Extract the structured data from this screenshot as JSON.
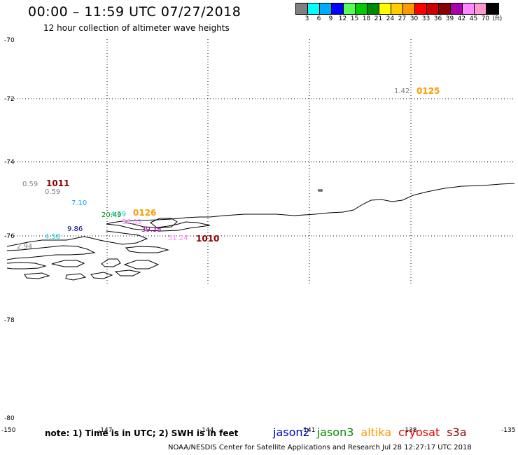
{
  "header": {
    "title": "00:00 – 11:59 UTC 07/27/2018",
    "subtitle": "12 hour collection of altimeter wave heights"
  },
  "colorbar": {
    "colors": [
      "#808080",
      "#00ffff",
      "#00aaff",
      "#0000ff",
      "#55ff55",
      "#00cc00",
      "#008800",
      "#ffff00",
      "#ffcc00",
      "#ff9900",
      "#ff0000",
      "#cc0000",
      "#880000",
      "#aa00aa",
      "#ff88ff",
      "#ff99cc",
      "#000000"
    ],
    "labels": [
      "3",
      "6",
      "9",
      "12",
      "15",
      "18",
      "21",
      "24",
      "27",
      "30",
      "33",
      "36",
      "39",
      "42",
      "45",
      "70"
    ],
    "unit": "(ft)"
  },
  "map": {
    "lat_labels": [
      "-70",
      "-72",
      "-74",
      "-76",
      "-78",
      "-78",
      "-80"
    ],
    "lon_labels": [
      "-150",
      "-147",
      "-144",
      "-141",
      "-138",
      "-135"
    ],
    "observations": [
      {
        "text": "1.42",
        "color": "#808080"
      },
      {
        "text": "0.59",
        "color": "#808080"
      },
      {
        "text": "0.59",
        "color": "#808080"
      },
      {
        "text": "7.10",
        "color": "#00aaff"
      },
      {
        "text": "20.49",
        "color": "#008800"
      },
      {
        "text": "4.59",
        "color": "#00cccc"
      },
      {
        "text": "56.03",
        "color": "#ff88ff"
      },
      {
        "text": "39.38",
        "color": "#aa00aa"
      },
      {
        "text": "9.86",
        "color": "#000088"
      },
      {
        "text": "4.58",
        "color": "#00cccc"
      },
      {
        "text": "51.24",
        "color": "#ff88ff"
      },
      {
        "text": "2.94",
        "color": "#808080"
      }
    ],
    "passes": [
      {
        "text": "0125",
        "color": "#ff9900"
      },
      {
        "text": "1011",
        "color": "#880000"
      },
      {
        "text": "0126",
        "color": "#ff9900"
      },
      {
        "text": "1010",
        "color": "#880000"
      }
    ]
  },
  "note": "note:  1) Time is in UTC; 2) SWH is in feet",
  "legend": [
    {
      "name": "jason2",
      "color": "#0000cc"
    },
    {
      "name": "jason3",
      "color": "#008800"
    },
    {
      "name": "altika",
      "color": "#ff9900"
    },
    {
      "name": "cryosat",
      "color": "#dd0000"
    },
    {
      "name": "s3a",
      "color": "#880000"
    }
  ],
  "footer": "NOAA/NESDIS Center for Satellite Applications and Research    Jul 28 12:27:17 UTC 2018"
}
